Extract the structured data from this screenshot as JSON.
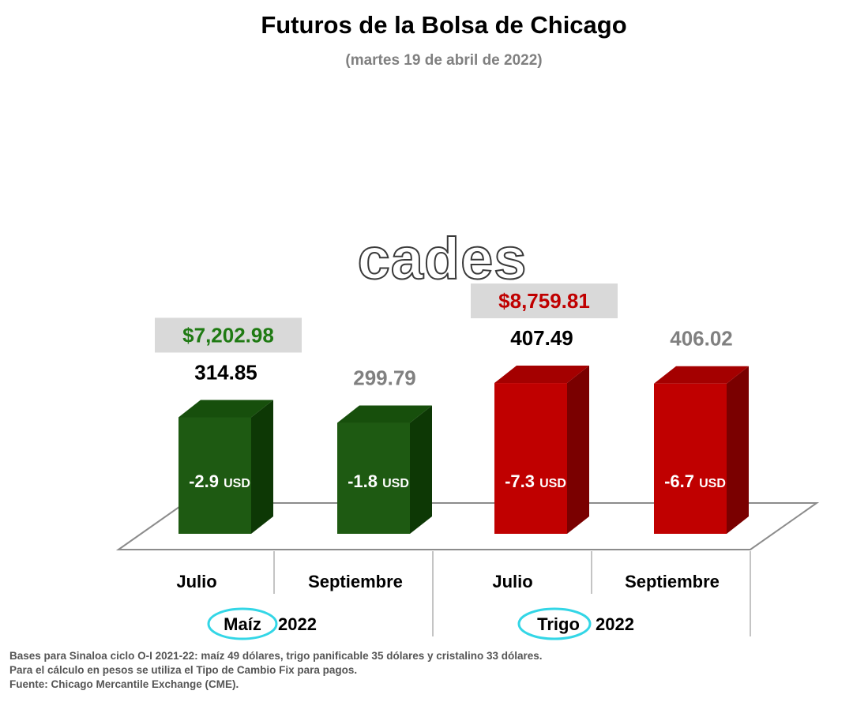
{
  "chart_data": {
    "type": "bar",
    "title": "Futuros de la Bolsa de Chicago",
    "subtitle": "(martes 19 de abril de 2022)",
    "watermark": "cades",
    "categories": [
      "Julio",
      "Septiembre",
      "Julio",
      "Septiembre"
    ],
    "groups": [
      {
        "name": "Maíz",
        "year": "2022",
        "color": "#1e5a12"
      },
      {
        "name": "Trigo",
        "year": "2022",
        "color": "#c00000"
      }
    ],
    "bars": [
      {
        "group": 0,
        "category": "Julio",
        "value": 314.85,
        "value_label": "314.85",
        "value_color": "#000000",
        "change": "-2.9",
        "unit": "USD",
        "price_label": "$7,202.98",
        "price_color": "#1f7a13"
      },
      {
        "group": 0,
        "category": "Septiembre",
        "value": 299.79,
        "value_label": "299.79",
        "value_color": "#808080",
        "change": "-1.8",
        "unit": "USD",
        "price_label": "",
        "price_color": ""
      },
      {
        "group": 1,
        "category": "Julio",
        "value": 407.49,
        "value_label": "407.49",
        "value_color": "#000000",
        "change": "-7.3",
        "unit": "USD",
        "price_label": "$8,759.81",
        "price_color": "#c00000"
      },
      {
        "group": 1,
        "category": "Septiembre",
        "value": 406.02,
        "value_label": "406.02",
        "value_color": "#808080",
        "change": "-6.7",
        "unit": "USD",
        "price_label": "",
        "price_color": ""
      }
    ],
    "colors": {
      "maiz": "#1e5a12",
      "trigo": "#c00000",
      "highlight_circle": "#33d6e6",
      "price_box": "#d9d9d9"
    },
    "grid": false,
    "legend": "none"
  },
  "footnotes": [
    "Bases para Sinaloa ciclo O-I 2021-22: maíz 49 dólares, trigo panificable 35 dólares y cristalino 33 dólares.",
    "Para el cálculo en pesos se utiliza el Tipo de Cambio Fix para pagos.",
    "Fuente: Chicago Mercantile Exchange (CME)."
  ]
}
